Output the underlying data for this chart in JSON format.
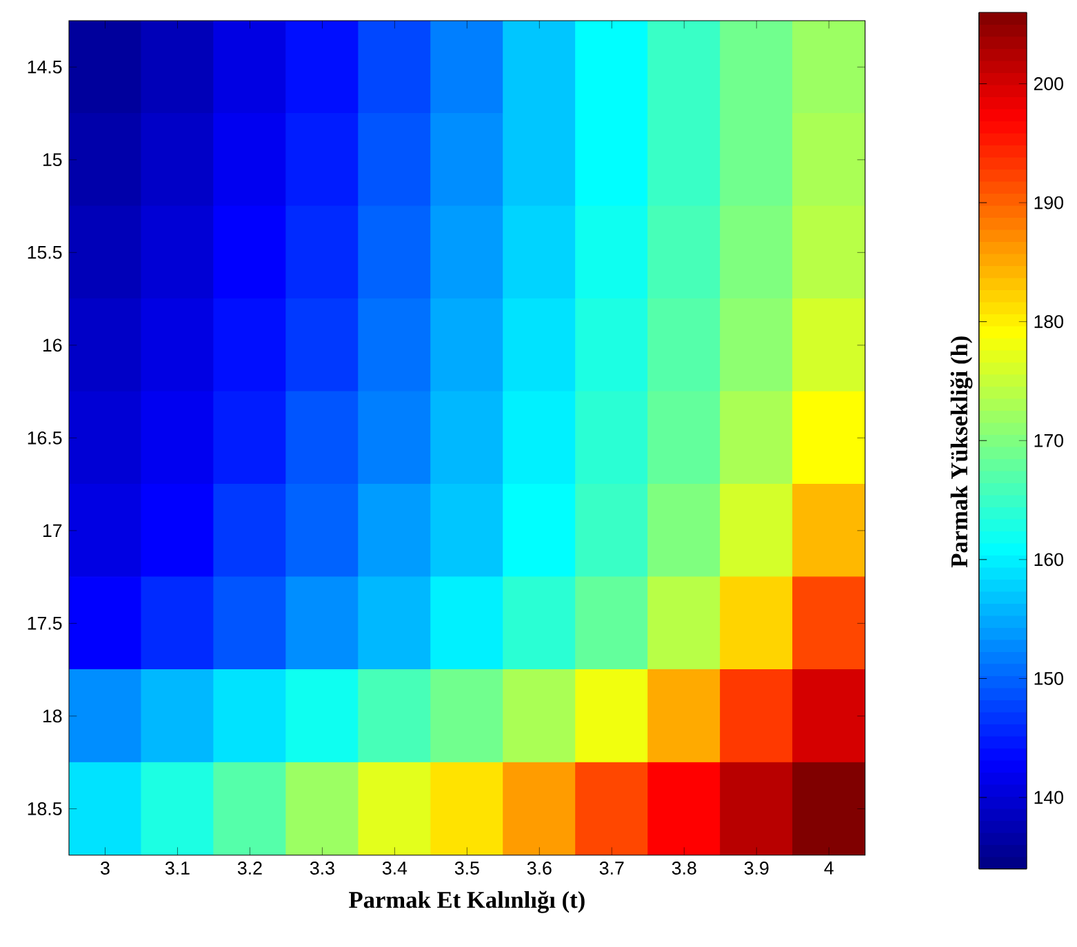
{
  "chart_data": {
    "type": "heatmap",
    "xlabel": "Parmak Et Kalınlığı (t)",
    "clabel": "Parmak Yüksekliği (h)",
    "categories": [
      "3",
      "3.1",
      "3.2",
      "3.3",
      "3.4",
      "3.5",
      "3.6",
      "3.7",
      "3.8",
      "3.9",
      "4"
    ],
    "y_categories": [
      "14.5",
      "15",
      "15.5",
      "16",
      "16.5",
      "17",
      "17.5",
      "18",
      "18.5"
    ],
    "cells": [
      [
        136,
        138,
        141,
        144,
        148,
        152,
        157,
        161,
        165,
        169,
        172
      ],
      [
        137,
        139,
        142,
        145,
        149,
        153,
        157,
        161,
        165,
        169,
        173
      ],
      [
        138,
        140,
        143,
        146,
        150,
        154,
        158,
        162,
        166,
        170,
        174
      ],
      [
        139,
        141,
        144,
        147,
        151,
        155,
        159,
        163,
        167,
        171,
        176
      ],
      [
        140,
        142,
        145,
        149,
        152,
        156,
        160,
        164,
        168,
        173,
        179
      ],
      [
        141,
        143,
        147,
        150,
        154,
        157,
        161,
        165,
        170,
        176,
        184
      ],
      [
        143,
        146,
        149,
        153,
        156,
        160,
        164,
        168,
        174,
        182,
        192
      ],
      [
        153,
        156,
        159,
        162,
        166,
        169,
        173,
        178,
        185,
        193,
        200
      ],
      [
        159,
        163,
        167,
        172,
        177,
        181,
        186,
        192,
        197,
        202,
        206
      ]
    ],
    "clim": [
      134,
      206
    ],
    "cticks": [
      140,
      150,
      160,
      170,
      180,
      190,
      200
    ]
  }
}
